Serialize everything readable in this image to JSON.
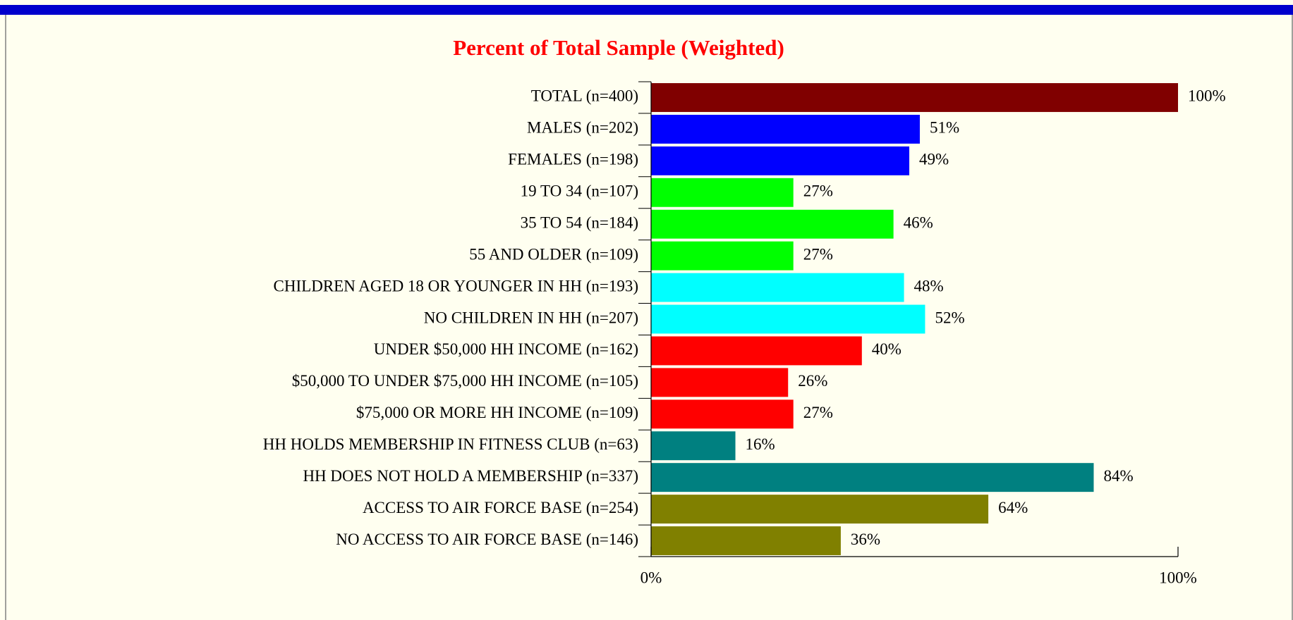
{
  "chart_data": {
    "type": "bar",
    "orientation": "horizontal",
    "title": "Percent of Total Sample (Weighted)",
    "categories": [
      "TOTAL (n=400)",
      "MALES (n=202)",
      "FEMALES (n=198)",
      "19 TO 34 (n=107)",
      "35 TO 54 (n=184)",
      "55 AND OLDER (n=109)",
      "CHILDREN AGED 18 OR YOUNGER IN HH (n=193)",
      "NO CHILDREN IN HH (n=207)",
      "UNDER $50,000 HH INCOME (n=162)",
      "$50,000 TO UNDER $75,000 HH INCOME (n=105)",
      "$75,000 OR MORE HH INCOME (n=109)",
      "HH HOLDS MEMBERSHIP IN FITNESS CLUB (n=63)",
      "HH DOES NOT HOLD A MEMBERSHIP (n=337)",
      "ACCESS TO AIR FORCE BASE (n=254)",
      "NO ACCESS TO AIR FORCE BASE (n=146)"
    ],
    "values": [
      100,
      51,
      49,
      27,
      46,
      27,
      48,
      52,
      40,
      26,
      27,
      16,
      84,
      64,
      36
    ],
    "value_labels": [
      "100%",
      "51%",
      "49%",
      "27%",
      "46%",
      "27%",
      "48%",
      "52%",
      "40%",
      "26%",
      "27%",
      "16%",
      "84%",
      "64%",
      "36%"
    ],
    "colors": [
      "#800000",
      "#0000ff",
      "#0000ff",
      "#00ff00",
      "#00ff00",
      "#00ff00",
      "#00ffff",
      "#00ffff",
      "#ff0000",
      "#ff0000",
      "#ff0000",
      "#008080",
      "#008080",
      "#808000",
      "#808000"
    ],
    "xlim": [
      0,
      100
    ],
    "xticks": [
      {
        "value": 0,
        "label": "0%"
      },
      {
        "value": 100,
        "label": "100%"
      }
    ]
  }
}
